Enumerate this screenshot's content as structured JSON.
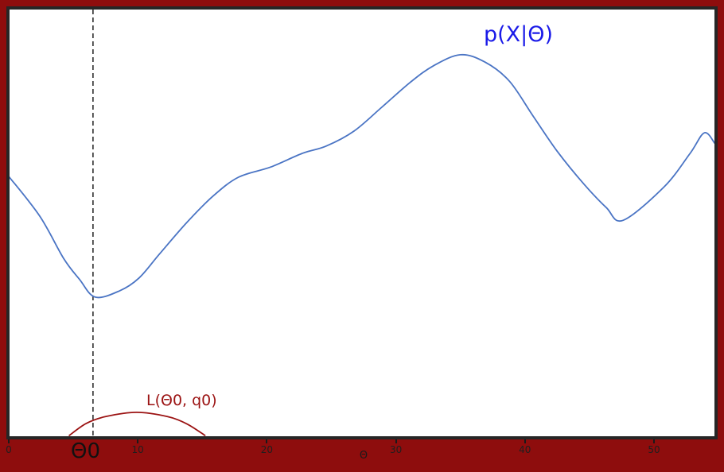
{
  "figure": {
    "background_color": "#8e0d0d",
    "frame_color": "#262626",
    "plot_background": "#ffffff"
  },
  "labels": {
    "p_curve": "p(X|Θ)",
    "l_curve": "L(Θ0, q0)",
    "theta0": "Θ0",
    "x_axis": "Θ"
  },
  "chart_data": {
    "type": "line",
    "title": "",
    "xlabel": "Θ",
    "ylabel": "",
    "y_units": "relative likelihood (normalized 0-1, no y axis shown)",
    "xlim": [
      0,
      54.7
    ],
    "x_ticks": [
      0,
      10,
      20,
      30,
      40,
      50
    ],
    "x_tick_labels": [
      "0",
      "10",
      "20",
      "30",
      "40",
      "50"
    ],
    "grid": false,
    "legend_position": "none (inline text annotations)",
    "vline": {
      "x": 6.53,
      "style": "dashed",
      "color": "#111111",
      "label": "Θ0"
    },
    "annotations": [
      {
        "text": "p(X|Θ)",
        "x": 37,
        "y": 0.95,
        "color": "#1a1ae8"
      },
      {
        "text": "L(Θ0, q0)",
        "x": 11,
        "y": 0.09,
        "color": "#9b1212"
      },
      {
        "text": "Θ0",
        "x": 5.5,
        "y": -0.03,
        "color": "#111111"
      }
    ],
    "series": [
      {
        "name": "p(X|Θ)",
        "color": "#4a74c4",
        "width": 1.8,
        "points": [
          [
            0,
            0.609
          ],
          [
            2.4,
            0.516
          ],
          [
            4.25,
            0.417
          ],
          [
            5.5,
            0.367
          ],
          [
            6.7,
            0.326
          ],
          [
            8.6,
            0.341
          ],
          [
            10.1,
            0.371
          ],
          [
            11.65,
            0.426
          ],
          [
            13.8,
            0.501
          ],
          [
            15.8,
            0.562
          ],
          [
            17.8,
            0.607
          ],
          [
            20.3,
            0.631
          ],
          [
            22.75,
            0.663
          ],
          [
            24.6,
            0.68
          ],
          [
            26.75,
            0.715
          ],
          [
            28.9,
            0.771
          ],
          [
            31.1,
            0.829
          ],
          [
            32.9,
            0.868
          ],
          [
            35.0,
            0.894
          ],
          [
            36.9,
            0.877
          ],
          [
            38.8,
            0.832
          ],
          [
            40.6,
            0.752
          ],
          [
            42.5,
            0.668
          ],
          [
            44.6,
            0.59
          ],
          [
            46.3,
            0.536
          ],
          [
            47.6,
            0.506
          ],
          [
            50.8,
            0.585
          ],
          [
            52.8,
            0.663
          ],
          [
            53.9,
            0.711
          ],
          [
            54.7,
            0.687
          ]
        ]
      },
      {
        "name": "L(Θ0, q0)",
        "color": "#9b1212",
        "width": 1.8,
        "points": [
          [
            4.7,
            0.002
          ],
          [
            6.0,
            0.03
          ],
          [
            7.5,
            0.046
          ],
          [
            9.9,
            0.056
          ],
          [
            12.3,
            0.046
          ],
          [
            13.8,
            0.029
          ],
          [
            15.2,
            0.002
          ]
        ]
      }
    ]
  }
}
